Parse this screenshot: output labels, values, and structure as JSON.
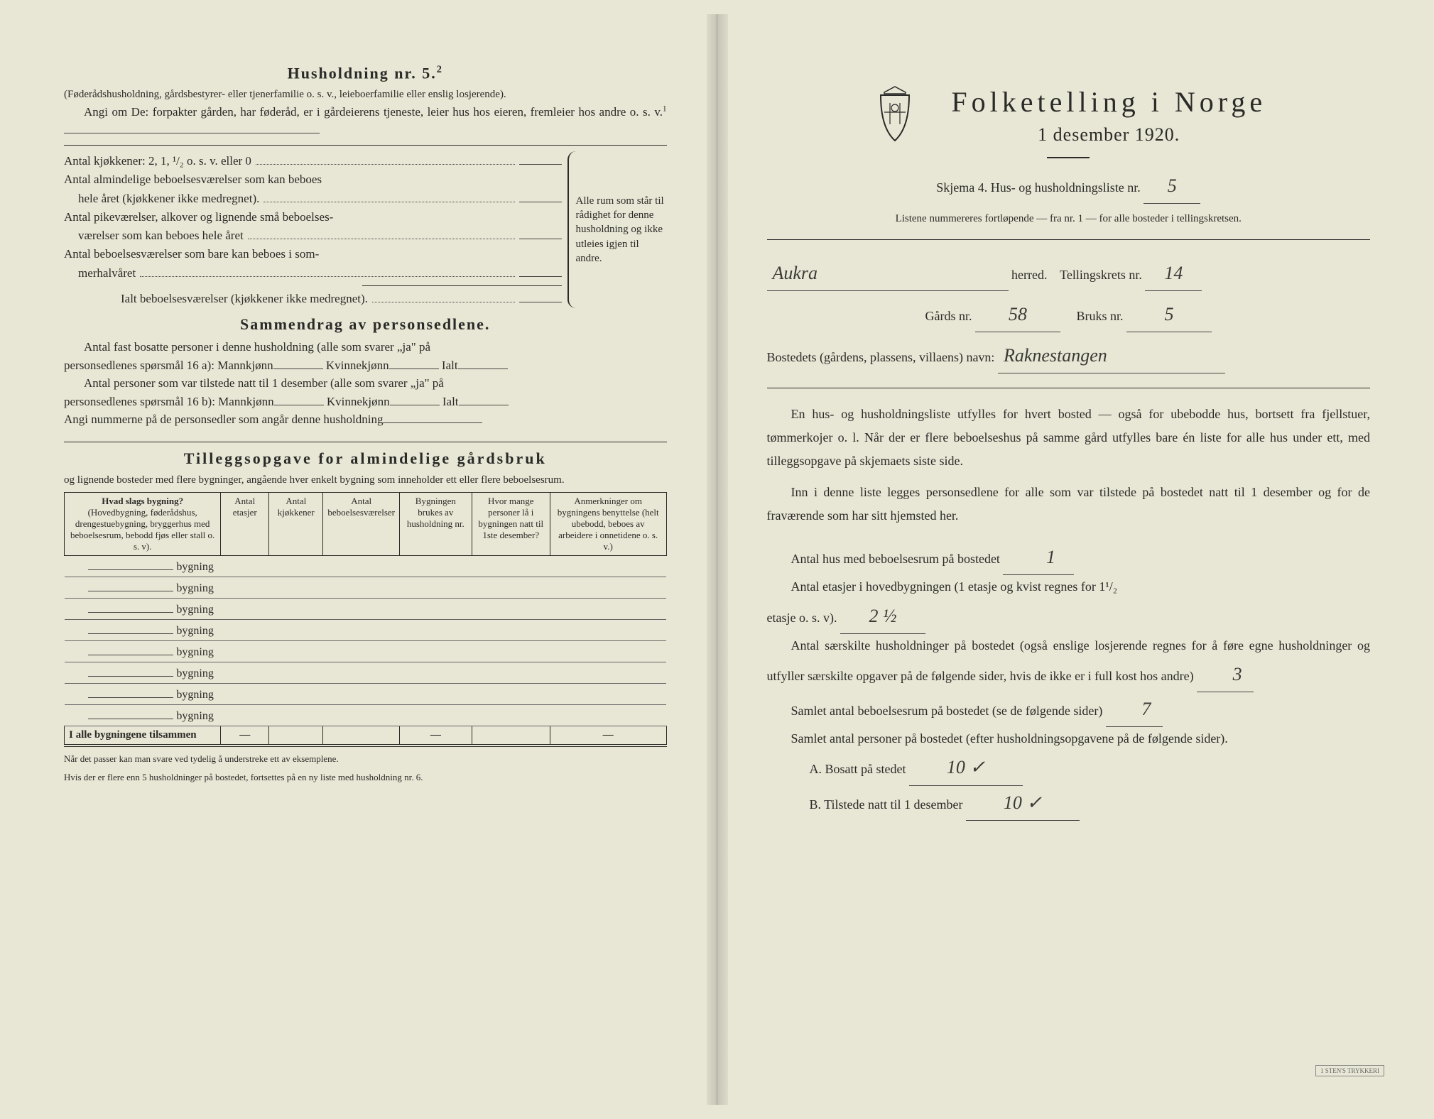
{
  "colors": {
    "paper": "#e8e6d4",
    "ink": "#2a2a28",
    "handwriting": "#3a3a36",
    "rule": "#2a2a28"
  },
  "left": {
    "section1_title": "Husholdning nr. 5.",
    "section1_sup": "2",
    "section1_p1": "(Føderådshusholdning, gårdsbestyrer- eller tjenerfamilie o. s. v., leieboerfamilie eller enslig losjerende).",
    "section1_p2": "Angi om De: forpakter gården, har føderåd, er i gårdeierens tjeneste, leier hus hos eieren, fremleier hos andre o. s. v.",
    "section1_sup2": "1",
    "rooms": {
      "l1": "Antal kjøkkener: 2, 1, ¹/₂ o. s. v. eller 0",
      "l2a": "Antal almindelige beboelsesværelser som kan beboes",
      "l2b": "hele året (kjøkkener ikke medregnet).",
      "l3a": "Antal pikeværelser, alkover og lignende små beboelses-",
      "l3b": "værelser som kan beboes hele året",
      "l4a": "Antal beboelsesværelser som bare kan beboes i som-",
      "l4b": "merhalvåret",
      "l5": "Ialt beboelsesværelser (kjøkkener ikke medregnet).",
      "brace_text": "Alle rum som står til rådighet for denne husholdning og ikke utleies igjen til andre."
    },
    "section2_title": "Sammendrag av personsedlene.",
    "s2_p1a": "Antal fast bosatte personer i denne husholdning (alle som svarer „ja\" på",
    "s2_p1b": "personsedlenes spørsmål 16 a): Mannkjønn",
    "s2_kv": "Kvinnekjønn",
    "s2_ialt": "Ialt",
    "s2_p2a": "Antal personer som var tilstede natt til 1 desember (alle som svarer „ja\" på",
    "s2_p2b": "personsedlenes spørsmål 16 b): Mannkjønn",
    "s2_p3": "Angi nummerne på de personsedler som angår denne husholdning",
    "section3_title": "Tilleggsopgave for almindelige gårdsbruk",
    "s3_p1": "og lignende bosteder med flere bygninger, angående hver enkelt bygning som inneholder ett eller flere beboelsesrum.",
    "table": {
      "h1a": "Hvad slags bygning?",
      "h1b": "(Hovedbygning, føderådshus, drengestuebygning, bryggerhus med beboelsesrum, bebodd fjøs eller stall o. s. v).",
      "h2": "Antal etasjer",
      "h3": "Antal kjøkkener",
      "h4": "Antal beboelsesværelser",
      "h5": "Bygningen brukes av husholdning nr.",
      "h6": "Hvor mange personer lå i bygningen natt til 1ste desember?",
      "h7": "Anmerkninger om bygningens benyttelse (helt ubebodd, beboes av arbeidere i onnetidene o. s. v.)",
      "row_label": "bygning",
      "totals": "I alle bygningene tilsammen"
    },
    "footnote1": "Når det passer kan man svare ved tydelig å understreke ett av eksemplene.",
    "footnote2": "Hvis der er flere enn 5 husholdninger på bostedet, fortsettes på en ny liste med husholdning nr. 6."
  },
  "right": {
    "title": "Folketelling i Norge",
    "subtitle": "1 desember 1920.",
    "skjema_line": "Skjema 4.   Hus- og husholdningsliste nr.",
    "skjema_nr": "5",
    "listene": "Listene nummereres fortløpende — fra nr. 1 — for alle bosteder i tellingskretsen.",
    "herred_value": "Aukra",
    "herred_label": "herred.",
    "krets_label": "Tellingskrets nr.",
    "krets_value": "14",
    "gards_label": "Gårds nr.",
    "gards_value": "58",
    "bruks_label": "Bruks nr.",
    "bruks_value": "5",
    "bosted_label": "Bostedets (gårdens, plassens, villaens) navn:",
    "bosted_value": "Raknestangen",
    "p1": "En hus- og husholdningsliste utfylles for hvert bosted — også for ubebodde hus, bortsett fra fjellstuer, tømmerkojer o. l.  Når der er flere beboelseshus på samme gård utfylles bare én liste for alle hus under ett, med tilleggsopgave på skjemaets siste side.",
    "p2": "Inn i denne liste legges personsedlene for alle som var tilstede på bostedet natt til 1 desember og for de fraværende som har sitt hjemsted her.",
    "q1": "Antal hus med beboelsesrum på bostedet",
    "q1_val": "1",
    "q2a": "Antal etasjer i hovedbygningen (1 etasje og kvist regnes for 1¹/₂",
    "q2b": "etasje o. s. v).",
    "q2_val": "2 ½",
    "q3": "Antal særskilte husholdninger på bostedet (også enslige losjerende regnes for å føre egne husholdninger og utfyller særskilte opgaver på de følgende sider, hvis de ikke er i full kost hos andre)",
    "q3_val": "3",
    "q4": "Samlet antal beboelsesrum på bostedet (se de følgende sider)",
    "q4_val": "7",
    "q5": "Samlet antal personer på bostedet (efter husholdningsopgavene på de følgende sider).",
    "qA": "A.  Bosatt på stedet",
    "qA_val": "10 ✓",
    "qB": "B.  Tilstede natt til 1 desember",
    "qB_val": "10 ✓",
    "stamp": "1 STEN'S TRYKKERI"
  }
}
